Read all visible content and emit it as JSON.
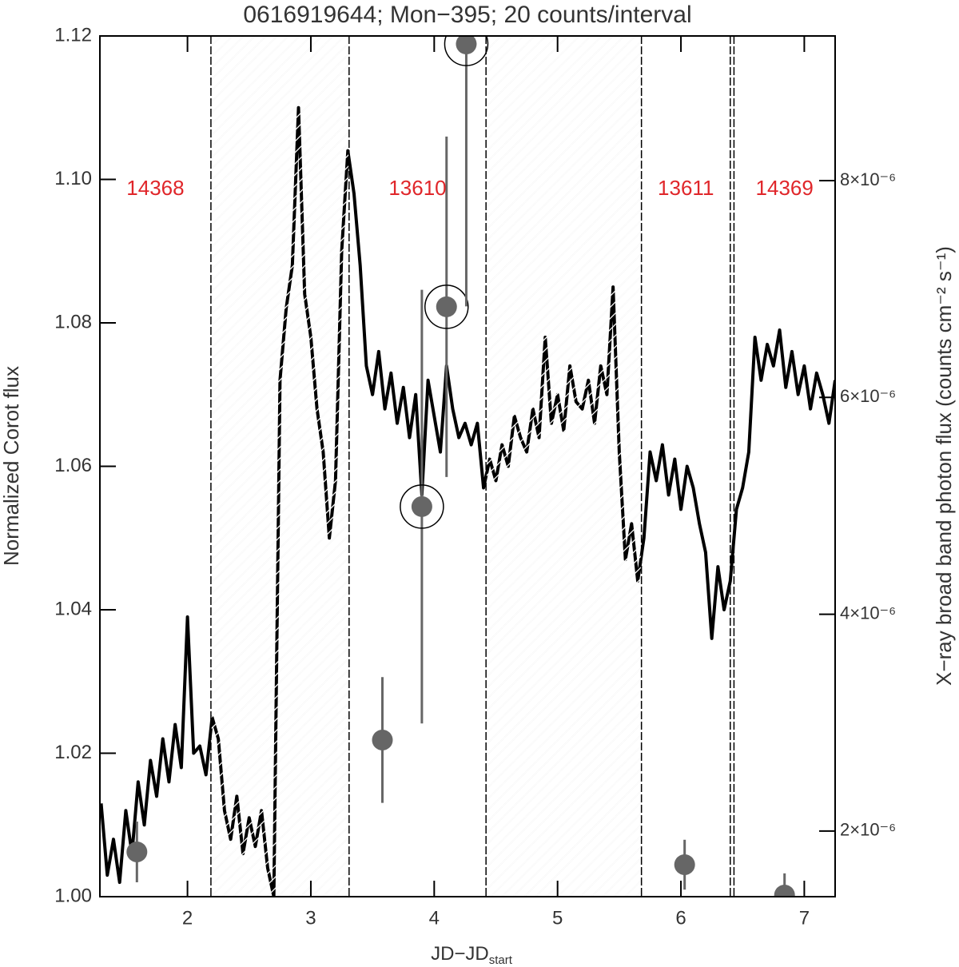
{
  "chart_data": {
    "type": "line",
    "title": "0616919644; Mon−395; 20 counts/interval",
    "ylabel": "Normalized Corot flux",
    "y2label": "X−ray broad band photon flux (counts cm⁻² s⁻¹)",
    "xlabel": {
      "main": "JD−JD",
      "sub": "start"
    },
    "xlim": [
      1.29,
      7.25
    ],
    "xticks": [
      2,
      3,
      4,
      5,
      6,
      7
    ],
    "ylim": [
      1.0,
      1.12
    ],
    "yticks": [
      {
        "value": 1.0,
        "label": "1.00"
      },
      1.02,
      1.04,
      1.06,
      1.08,
      {
        "value": 1.1,
        "label": "1.10"
      },
      1.12
    ],
    "y2lim": [
      1.395e-06,
      9.334e-06
    ],
    "y2ticks": [
      {
        "value": 2e-06,
        "label": "2×10⁻⁶"
      },
      {
        "value": 4e-06,
        "label": "4×10⁻⁶"
      },
      {
        "value": 6e-06,
        "label": "6×10⁻⁶"
      },
      {
        "value": 8e-06,
        "label": "8×10⁻⁶"
      }
    ],
    "color": "#000000",
    "gaps": [
      [
        2.19,
        3.31
      ],
      [
        4.42,
        5.68
      ],
      [
        6.4,
        6.43
      ]
    ],
    "gap_hatch": [
      true,
      true,
      false
    ],
    "segment_labels": [
      "14368",
      "13610",
      "13611",
      "14369"
    ],
    "segment_label_color": "#e0262a",
    "x": [
      1.3,
      1.35,
      1.4,
      1.45,
      1.5,
      1.55,
      1.6,
      1.65,
      1.7,
      1.75,
      1.8,
      1.85,
      1.9,
      1.95,
      2.0,
      2.05,
      2.1,
      2.15,
      2.2,
      2.25,
      2.3,
      2.35,
      2.4,
      2.45,
      2.5,
      2.55,
      2.6,
      2.65,
      2.7,
      2.75,
      2.8,
      2.85,
      2.9,
      2.95,
      3.0,
      3.05,
      3.1,
      3.15,
      3.2,
      3.25,
      3.3,
      3.35,
      3.4,
      3.45,
      3.5,
      3.55,
      3.6,
      3.65,
      3.7,
      3.75,
      3.8,
      3.85,
      3.9,
      3.95,
      4.0,
      4.05,
      4.1,
      4.15,
      4.2,
      4.25,
      4.3,
      4.35,
      4.4,
      4.45,
      4.5,
      4.55,
      4.6,
      4.65,
      4.7,
      4.75,
      4.8,
      4.85,
      4.9,
      4.95,
      5.0,
      5.05,
      5.1,
      5.15,
      5.2,
      5.25,
      5.3,
      5.35,
      5.4,
      5.45,
      5.5,
      5.55,
      5.6,
      5.65,
      5.7,
      5.75,
      5.8,
      5.85,
      5.9,
      5.95,
      6.0,
      6.05,
      6.1,
      6.15,
      6.2,
      6.25,
      6.3,
      6.35,
      6.4,
      6.45,
      6.5,
      6.55,
      6.6,
      6.65,
      6.7,
      6.75,
      6.8,
      6.85,
      6.9,
      6.95,
      7.0,
      7.05,
      7.1,
      7.15,
      7.2,
      7.25
    ],
    "values": [
      1.013,
      1.003,
      1.008,
      1.002,
      1.012,
      1.006,
      1.016,
      1.01,
      1.019,
      1.014,
      1.022,
      1.016,
      1.024,
      1.018,
      1.039,
      1.02,
      1.021,
      1.017,
      1.025,
      1.022,
      1.012,
      1.008,
      1.014,
      1.006,
      1.011,
      1.007,
      1.012,
      1.004,
      1.0,
      1.072,
      1.082,
      1.088,
      1.11,
      1.084,
      1.078,
      1.068,
      1.062,
      1.05,
      1.058,
      1.09,
      1.104,
      1.098,
      1.088,
      1.074,
      1.07,
      1.076,
      1.068,
      1.073,
      1.066,
      1.071,
      1.064,
      1.07,
      1.056,
      1.072,
      1.067,
      1.062,
      1.074,
      1.068,
      1.064,
      1.066,
      1.063,
      1.066,
      1.057,
      1.061,
      1.058,
      1.063,
      1.06,
      1.067,
      1.064,
      1.062,
      1.068,
      1.064,
      1.078,
      1.066,
      1.07,
      1.065,
      1.074,
      1.069,
      1.068,
      1.072,
      1.066,
      1.074,
      1.07,
      1.085,
      1.062,
      1.047,
      1.052,
      1.044,
      1.05,
      1.062,
      1.058,
      1.063,
      1.056,
      1.061,
      1.054,
      1.06,
      1.057,
      1.052,
      1.048,
      1.036,
      1.046,
      1.04,
      1.044,
      1.054,
      1.057,
      1.062,
      1.078,
      1.072,
      1.077,
      1.074,
      1.079,
      1.071,
      1.076,
      1.07,
      1.074,
      1.068,
      1.073,
      1.07,
      1.066,
      1.072
    ],
    "xray": {
      "color": "#666666",
      "x": [
        1.59,
        3.58,
        3.9,
        4.1,
        4.26,
        6.03,
        6.84
      ],
      "values": [
        1.808e-06,
        2.84e-06,
        4.993e-06,
        6.836e-06,
        9.26e-06,
        1.69e-06,
        1.41e-06
      ],
      "errors": [
        2.8e-07,
        5.8e-07,
        2e-06,
        1.57e-06,
        2.42e-06,
        2.3e-07,
        2e-07
      ],
      "circled": [
        false,
        false,
        true,
        true,
        true,
        false,
        false
      ]
    }
  }
}
